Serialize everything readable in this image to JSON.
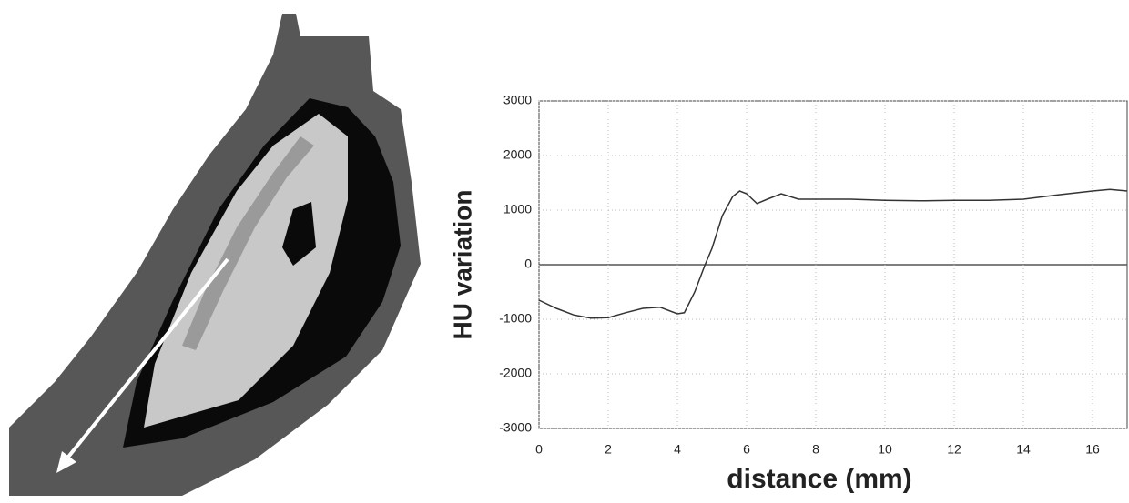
{
  "chart_data": {
    "type": "line",
    "x_label": "distance (mm)",
    "y_label": "HU variation",
    "x": [
      0,
      0.5,
      1,
      1.5,
      2,
      2.5,
      3,
      3.5,
      4,
      4.2,
      4.5,
      4.8,
      5,
      5.3,
      5.6,
      5.8,
      6,
      6.3,
      6.6,
      7,
      7.5,
      8,
      9,
      10,
      11,
      12,
      13,
      14,
      15,
      16,
      16.5,
      17
    ],
    "series": [
      {
        "color": "#333333",
        "values": [
          -650,
          -800,
          -920,
          -980,
          -970,
          -880,
          -800,
          -780,
          -900,
          -880,
          -500,
          0,
          300,
          900,
          1250,
          1350,
          1300,
          1120,
          1200,
          1300,
          1200,
          1200,
          1200,
          1180,
          1170,
          1180,
          1180,
          1200,
          1280,
          1350,
          1380,
          1350
        ]
      }
    ],
    "xlim": [
      0,
      17
    ],
    "ylim": [
      -3000,
      3000
    ],
    "xticks": [
      0,
      2,
      4,
      6,
      8,
      10,
      12,
      14,
      16
    ],
    "yticks": [
      -3000,
      -2000,
      -1000,
      0,
      1000,
      2000,
      3000
    ],
    "grid": true
  }
}
